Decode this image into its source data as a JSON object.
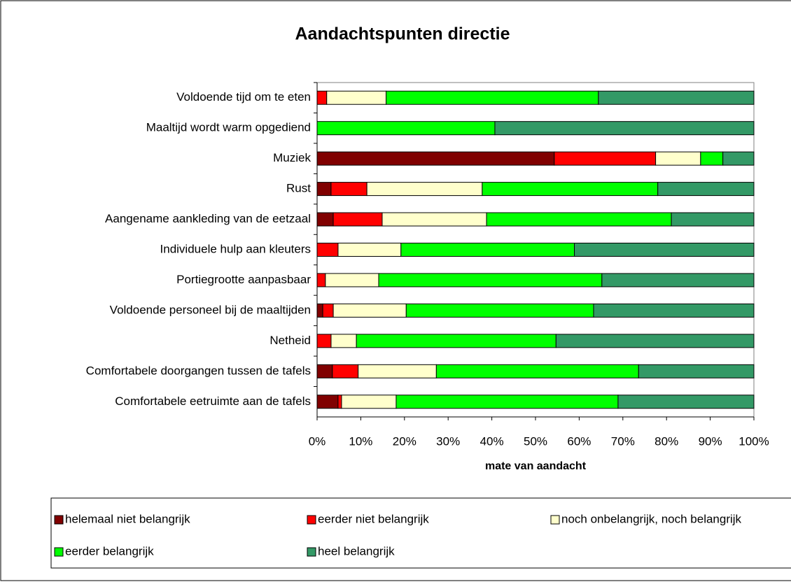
{
  "chart_data": {
    "type": "stacked_bar_horizontal",
    "title": "Aandachtspunten directie",
    "x_label": "mate van aandacht",
    "categories": [
      "Voldoende tijd om te eten",
      "Maaltijd wordt warm opgediend",
      "Muziek",
      "Rust",
      "Aangename aankleding van de eetzaal",
      "Individuele hulp aan kleuters",
      "Portiegrootte aanpasbaar",
      "Voldoende personeel bij de maaltijden",
      "Netheid",
      "Comfortabele doorgangen tussen de tafels",
      "Comfortabele eetruimte aan de tafels"
    ],
    "series": [
      {
        "name": "helemaal niet belangrijk",
        "color": "#800000",
        "values": [
          0,
          0,
          54.3,
          3.2,
          3.7,
          0,
          0,
          1.3,
          0,
          3.5,
          4.8
        ]
      },
      {
        "name": "eerder niet belangrijk",
        "color": "#ff0000",
        "values": [
          2.2,
          0,
          23.2,
          8.2,
          11.2,
          4.8,
          1.9,
          2.4,
          3.2,
          5.9,
          0.8
        ]
      },
      {
        "name": "noch onbelangrijk, noch belangrijk",
        "color": "#ffffcc",
        "values": [
          13.6,
          0,
          10.3,
          26.4,
          23.9,
          14.4,
          12.2,
          16.7,
          5.8,
          17.9,
          12.5
        ]
      },
      {
        "name": "eerder belangrijk",
        "color": "#00ff00",
        "values": [
          48.6,
          40.7,
          5.1,
          40.2,
          42.3,
          39.7,
          51.1,
          42.9,
          45.7,
          46.3,
          50.8
        ]
      },
      {
        "name": "heel belangrijk",
        "color": "#339966",
        "values": [
          35.6,
          59.3,
          7.1,
          22.0,
          18.9,
          41.1,
          34.8,
          36.7,
          45.3,
          26.4,
          31.1
        ]
      }
    ],
    "xlim": [
      0,
      100
    ],
    "xticks": [
      {
        "value": 0,
        "label": "0%"
      },
      {
        "value": 10,
        "label": "10%"
      },
      {
        "value": 20,
        "label": "20%"
      },
      {
        "value": 30,
        "label": "30%"
      },
      {
        "value": 40,
        "label": "40%"
      },
      {
        "value": 50,
        "label": "50%"
      },
      {
        "value": 60,
        "label": "60%"
      },
      {
        "value": 70,
        "label": "70%"
      },
      {
        "value": 80,
        "label": "80%"
      },
      {
        "value": 90,
        "label": "90%"
      },
      {
        "value": 100,
        "label": "100%"
      }
    ],
    "grid": false,
    "legend": "bottom"
  }
}
